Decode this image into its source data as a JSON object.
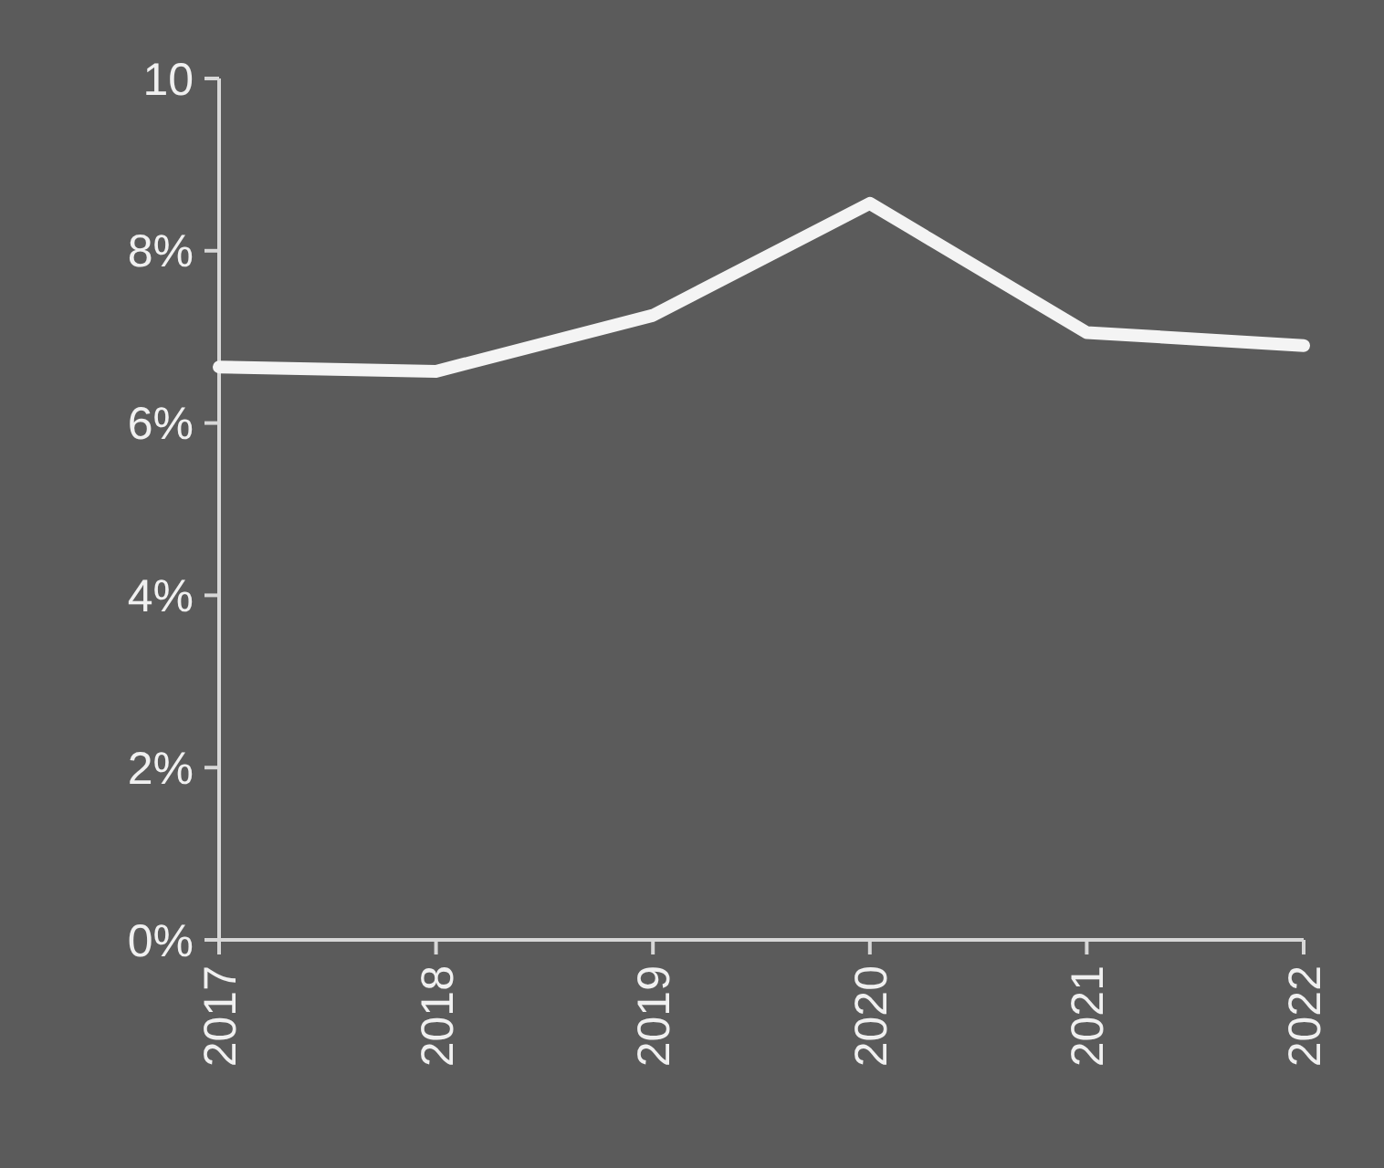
{
  "chart_data": {
    "type": "line",
    "categories": [
      "2017",
      "2018",
      "2019",
      "2020",
      "2021",
      "2022"
    ],
    "series": [
      {
        "color": "#f4f4f4",
        "values": [
          6.65,
          6.6,
          7.25,
          8.55,
          7.05,
          6.9
        ]
      }
    ],
    "ylim": [
      0,
      10
    ],
    "yticks": [
      {
        "value": 0,
        "label": "0%"
      },
      {
        "value": 2,
        "label": "2%"
      },
      {
        "value": 4,
        "label": "4%"
      },
      {
        "value": 6,
        "label": "6%"
      },
      {
        "value": 8,
        "label": "8%"
      },
      {
        "value": 10,
        "label": "10"
      }
    ],
    "grid": false,
    "marker": "none",
    "line_style": "solid"
  }
}
